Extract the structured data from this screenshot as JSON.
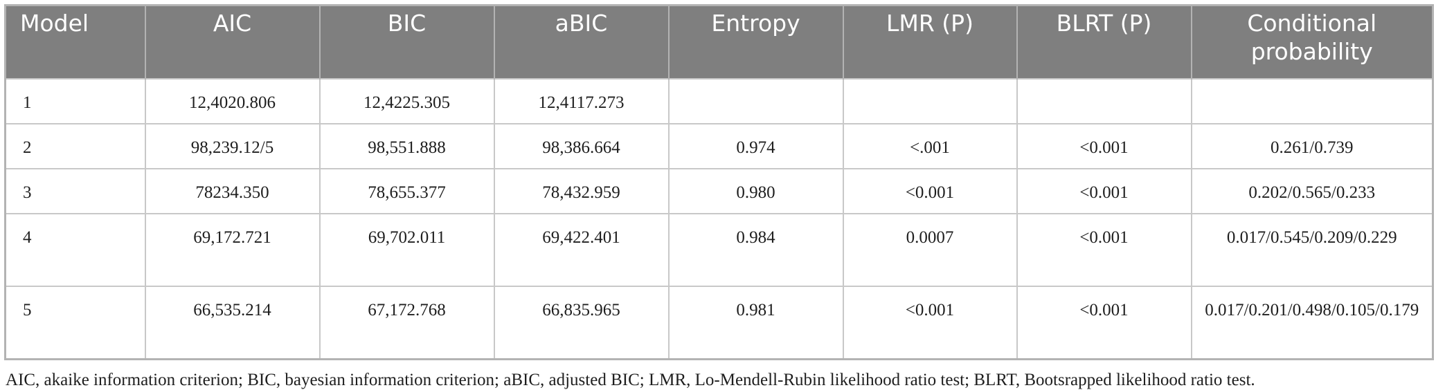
{
  "table": {
    "headers": [
      "Model",
      "AIC",
      "BIC",
      "aBIC",
      "Entropy",
      "LMR (P)",
      "BLRT (P)",
      "Conditional probability"
    ],
    "rows": [
      [
        "1",
        "12,4020.806",
        "12,4225.305",
        "12,4117.273",
        "",
        "",
        "",
        ""
      ],
      [
        "2",
        "98,239.12/5",
        "98,551.888",
        "98,386.664",
        "0.974",
        "<.001",
        "<0.001",
        "0.261/0.739"
      ],
      [
        "3",
        "78234.350",
        "78,655.377",
        "78,432.959",
        "0.980",
        "<0.001",
        "<0.001",
        "0.202/0.565/0.233"
      ],
      [
        "4",
        "69,172.721",
        "69,702.011",
        "69,422.401",
        "0.984",
        "0.0007",
        "<0.001",
        "0.017/0.545/0.209/0.229"
      ],
      [
        "5",
        "66,535.214",
        "67,172.768",
        "66,835.965",
        "0.981",
        "<0.001",
        "<0.001",
        "0.017/0.201/0.498/0.105/0.179"
      ]
    ]
  },
  "footnote": "AIC, akaike information criterion; BIC, bayesian information criterion; aBIC, adjusted BIC; LMR, Lo-Mendell-Rubin likelihood ratio test; BLRT, Bootsrapped likelihood ratio test."
}
